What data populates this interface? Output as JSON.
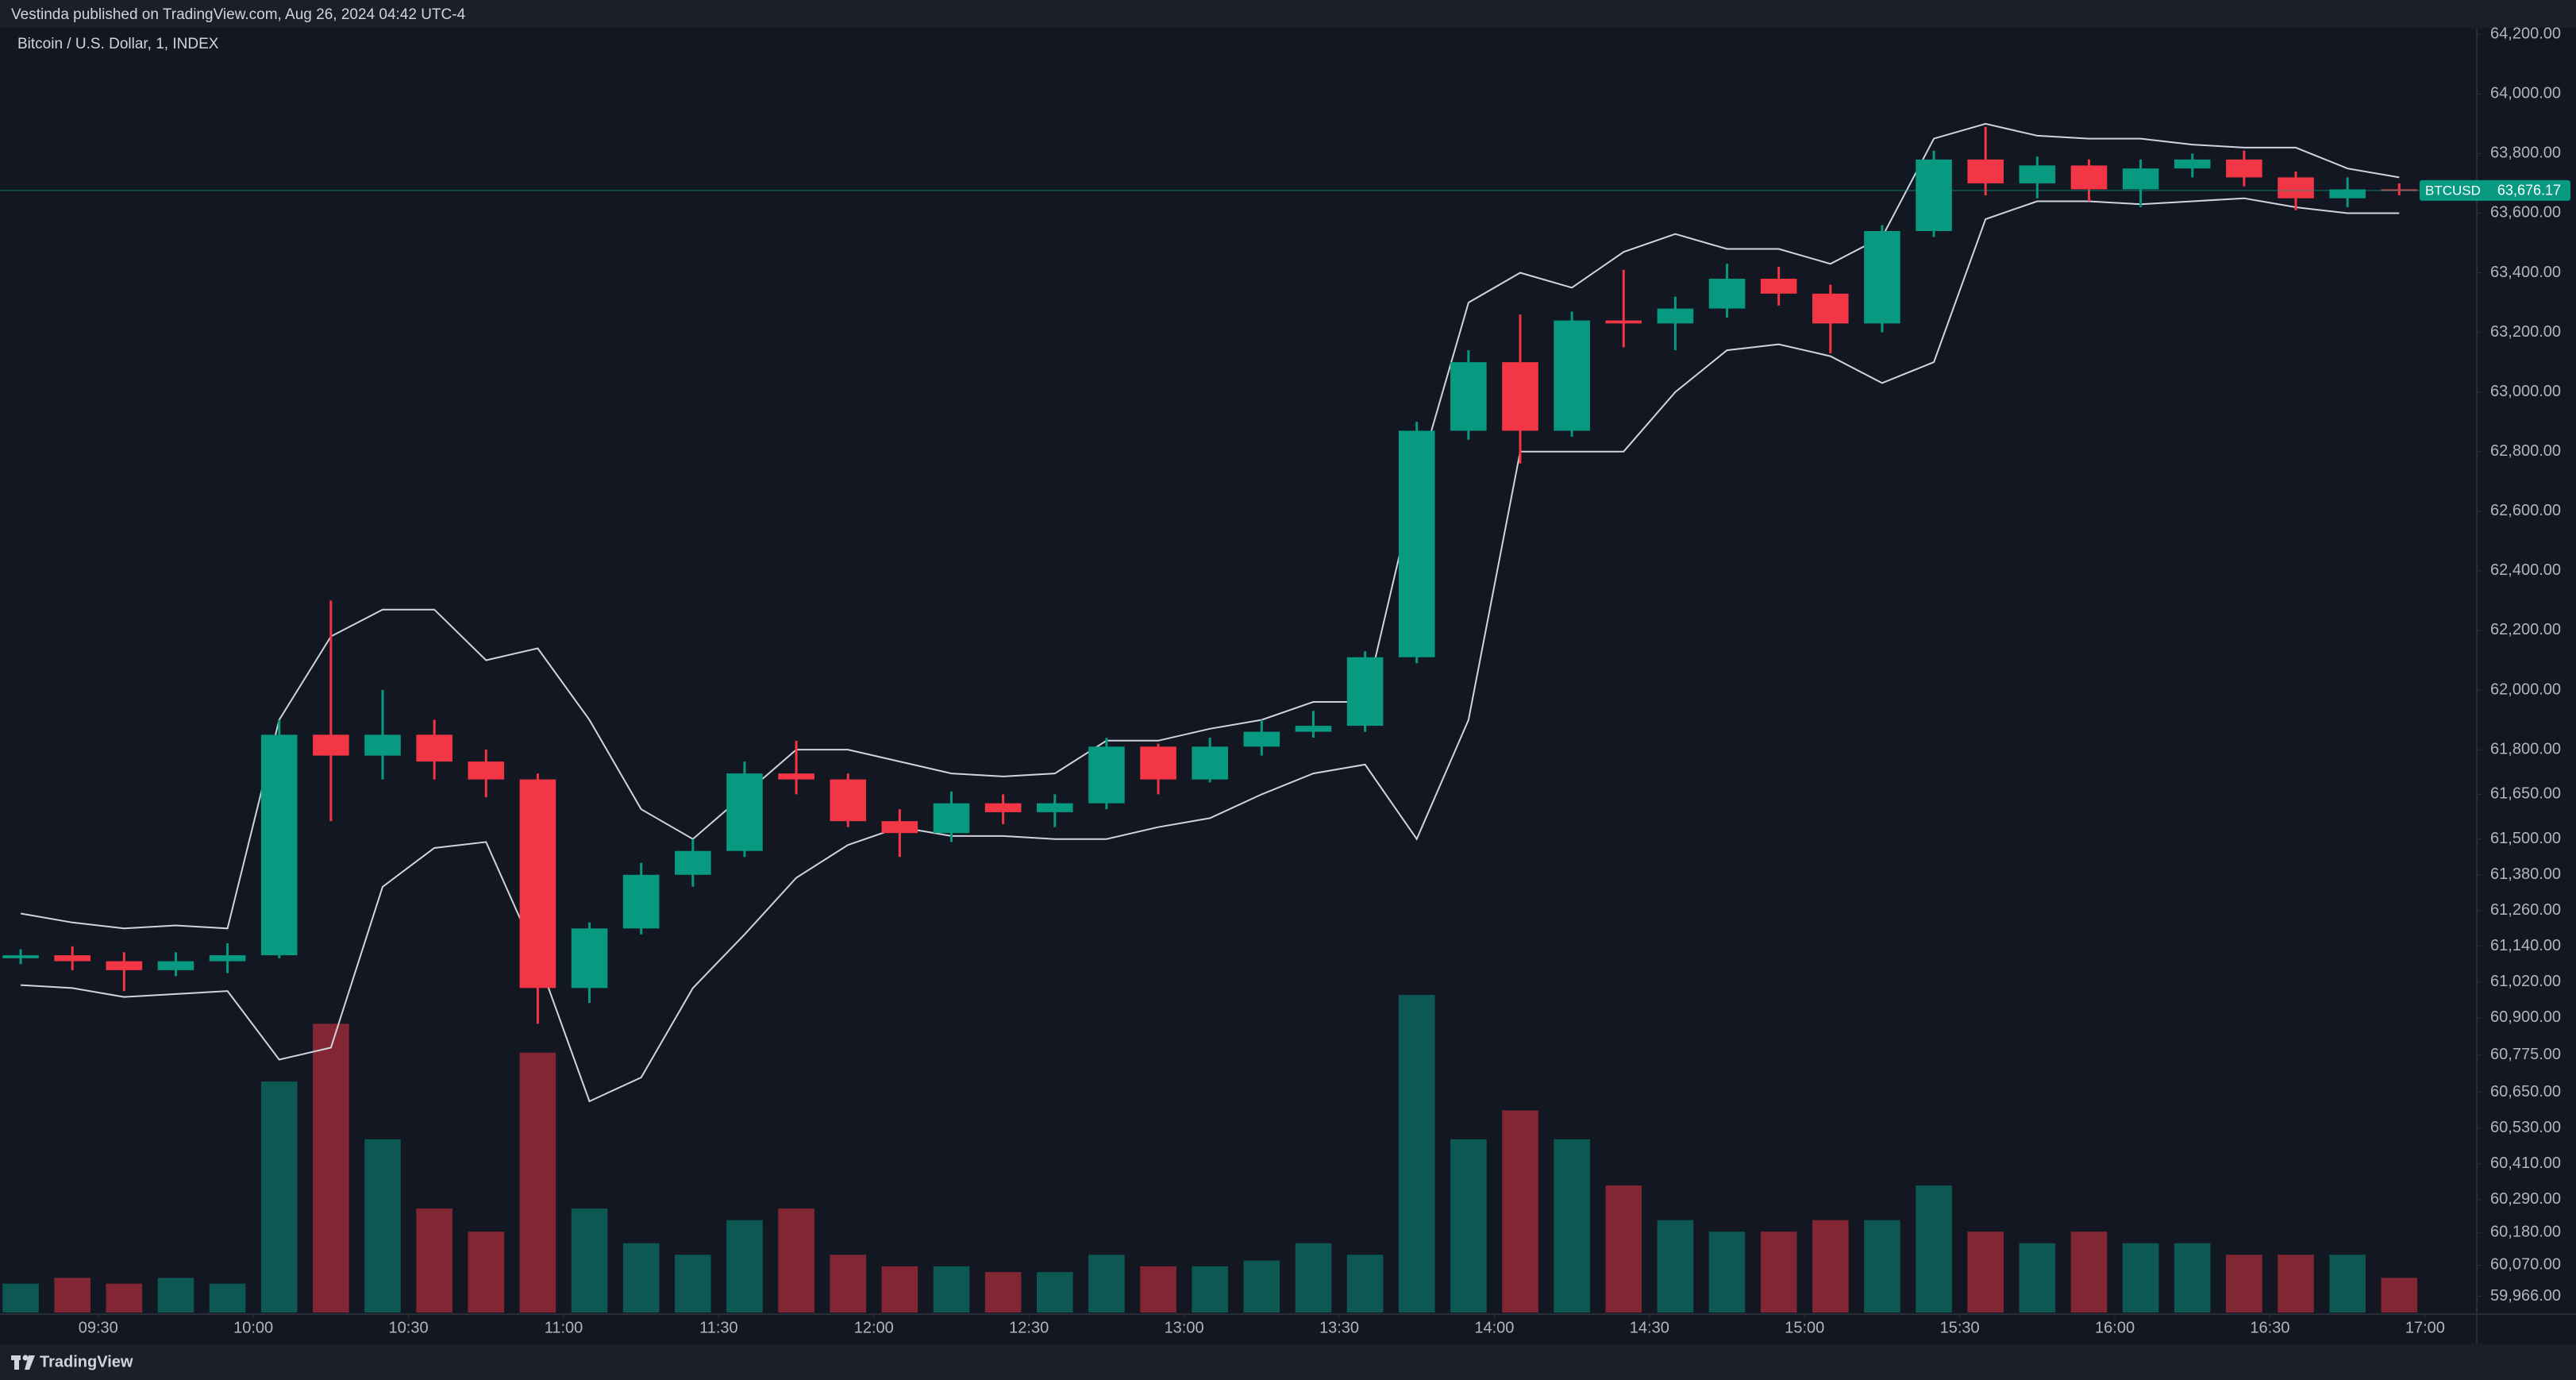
{
  "header": {
    "text": "Vestinda published on TradingView.com, Aug 26, 2024 04:42 UTC-4"
  },
  "footer": {
    "brand": "TradingView"
  },
  "chart_data": {
    "type": "candlestick",
    "title": "Bitcoin / U.S. Dollar, 1, INDEX",
    "x": [
      "09:10",
      "09:20",
      "09:30",
      "09:40",
      "09:50",
      "10:00",
      "10:10",
      "10:20",
      "10:30",
      "10:40",
      "10:50",
      "11:00",
      "11:10",
      "11:20",
      "11:30",
      "11:40",
      "11:50",
      "12:00",
      "12:10",
      "12:20",
      "12:30",
      "12:40",
      "12:50",
      "13:00",
      "13:10",
      "13:20",
      "13:30",
      "13:40",
      "13:50",
      "14:00",
      "14:10",
      "14:20",
      "14:30",
      "14:40",
      "14:50",
      "15:00",
      "15:10",
      "15:20",
      "15:30",
      "15:40",
      "15:50",
      "16:00",
      "16:10",
      "16:20",
      "16:30",
      "16:40",
      "16:50"
    ],
    "open": [
      61100,
      61110,
      61090,
      61060,
      61090,
      61110,
      61850,
      61780,
      61850,
      61760,
      61700,
      61000,
      61200,
      61380,
      61460,
      61720,
      61700,
      61560,
      61520,
      61620,
      61590,
      61620,
      61810,
      61700,
      61810,
      61860,
      61880,
      62110,
      62870,
      63100,
      62870,
      63240,
      63230,
      63280,
      63380,
      63330,
      63230,
      63540,
      63780,
      63700,
      63760,
      63680,
      63750,
      63780,
      63720,
      63650,
      63680
    ],
    "high": [
      61130,
      61140,
      61120,
      61120,
      61150,
      61900,
      62300,
      62000,
      61900,
      61800,
      61720,
      61220,
      61420,
      61500,
      61760,
      61830,
      61720,
      61600,
      61660,
      61650,
      61650,
      61840,
      61820,
      61840,
      61900,
      61930,
      62130,
      62900,
      63140,
      63260,
      63270,
      63410,
      63320,
      63430,
      63420,
      63360,
      63560,
      63810,
      63890,
      63790,
      63780,
      63780,
      63800,
      63810,
      63740,
      63720,
      63700
    ],
    "low": [
      61080,
      61060,
      60990,
      61040,
      61050,
      61100,
      61560,
      61700,
      61700,
      61640,
      60880,
      60950,
      61180,
      61340,
      61440,
      61650,
      61540,
      61440,
      61490,
      61550,
      61540,
      61600,
      61650,
      61690,
      61780,
      61840,
      61860,
      62090,
      62840,
      62760,
      62850,
      63150,
      63140,
      63250,
      63290,
      63130,
      63200,
      63520,
      63660,
      63650,
      63640,
      63620,
      63720,
      63690,
      63610,
      63620,
      63660
    ],
    "close": [
      61110,
      61090,
      61060,
      61090,
      61110,
      61850,
      61780,
      61850,
      61760,
      61700,
      61000,
      61200,
      61380,
      61460,
      61720,
      61700,
      61560,
      61520,
      61620,
      61590,
      61620,
      61810,
      61700,
      61810,
      61860,
      61880,
      62110,
      62870,
      63100,
      62870,
      63240,
      63230,
      63280,
      63380,
      63330,
      63230,
      63540,
      63780,
      63700,
      63760,
      63680,
      63750,
      63780,
      63720,
      63650,
      63680,
      63676.17
    ],
    "volume": [
      5,
      6,
      5,
      6,
      5,
      40,
      50,
      30,
      18,
      14,
      45,
      18,
      12,
      10,
      16,
      18,
      10,
      8,
      8,
      7,
      7,
      10,
      8,
      8,
      9,
      12,
      10,
      55,
      30,
      35,
      30,
      22,
      16,
      14,
      14,
      16,
      16,
      22,
      14,
      12,
      14,
      12,
      12,
      10,
      10,
      10,
      6
    ],
    "bands": {
      "upper": [
        61250,
        61220,
        61200,
        61210,
        61200,
        61900,
        62180,
        62270,
        62270,
        62100,
        62140,
        61900,
        61600,
        61500,
        61650,
        61800,
        61800,
        61760,
        61720,
        61710,
        61720,
        61830,
        61830,
        61870,
        61900,
        61960,
        61960,
        62700,
        63300,
        63400,
        63350,
        63470,
        63530,
        63480,
        63480,
        63430,
        63520,
        63850,
        63900,
        63860,
        63850,
        63850,
        63830,
        63820,
        63820,
        63750,
        63720
      ],
      "lower": [
        61010,
        61000,
        60970,
        60980,
        60990,
        60760,
        60800,
        61340,
        61470,
        61490,
        61100,
        60620,
        60700,
        61000,
        61180,
        61370,
        61480,
        61540,
        61510,
        61510,
        61500,
        61500,
        61540,
        61570,
        61650,
        61720,
        61750,
        61500,
        61900,
        62800,
        62800,
        62800,
        63000,
        63140,
        63160,
        63120,
        63030,
        63100,
        63580,
        63640,
        63640,
        63630,
        63640,
        63650,
        63620,
        63600,
        63600
      ],
      "color": "#d1d4dc"
    },
    "up_color": "#089981",
    "down_color": "#f23645",
    "xlim": [
      "09:11",
      "17:10"
    ],
    "xticks": [
      "09:30",
      "10:00",
      "10:30",
      "11:00",
      "11:30",
      "12:00",
      "12:30",
      "13:00",
      "13:30",
      "14:00",
      "14:30",
      "15:00",
      "15:30",
      "16:00",
      "16:30",
      "17:00"
    ],
    "ylim": [
      59906,
      64222
    ],
    "yticks": [
      {
        "value": 64200,
        "label": "64,200.00"
      },
      {
        "value": 64000,
        "label": "64,000.00"
      },
      {
        "value": 63800,
        "label": "63,800.00"
      },
      {
        "value": 63600,
        "label": "63,600.00"
      },
      {
        "value": 63400,
        "label": "63,400.00"
      },
      {
        "value": 63200,
        "label": "63,200.00"
      },
      {
        "value": 63000,
        "label": "63,000.00"
      },
      {
        "value": 62800,
        "label": "62,800.00"
      },
      {
        "value": 62600,
        "label": "62,600.00"
      },
      {
        "value": 62400,
        "label": "62,400.00"
      },
      {
        "value": 62200,
        "label": "62,200.00"
      },
      {
        "value": 62000,
        "label": "62,000.00"
      },
      {
        "value": 61800,
        "label": "61,800.00"
      },
      {
        "value": 61650,
        "label": "61,650.00"
      },
      {
        "value": 61500,
        "label": "61,500.00"
      },
      {
        "value": 61380,
        "label": "61,380.00"
      },
      {
        "value": 61260,
        "label": "61,260.00"
      },
      {
        "value": 61140,
        "label": "61,140.00"
      },
      {
        "value": 61020,
        "label": "61,020.00"
      },
      {
        "value": 60900,
        "label": "60,900.00"
      },
      {
        "value": 60775,
        "label": "60,775.00"
      },
      {
        "value": 60650,
        "label": "60,650.00"
      },
      {
        "value": 60530,
        "label": "60,530.00"
      },
      {
        "value": 60410,
        "label": "60,410.00"
      },
      {
        "value": 60290,
        "label": "60,290.00"
      },
      {
        "value": 60180,
        "label": "60,180.00"
      },
      {
        "value": 60070,
        "label": "60,070.00"
      },
      {
        "value": 59966,
        "label": "59,966.00"
      }
    ],
    "last_price": {
      "symbol": "BTCUSD",
      "value": 63676.17,
      "label": "63,676.17"
    },
    "grid": false
  }
}
